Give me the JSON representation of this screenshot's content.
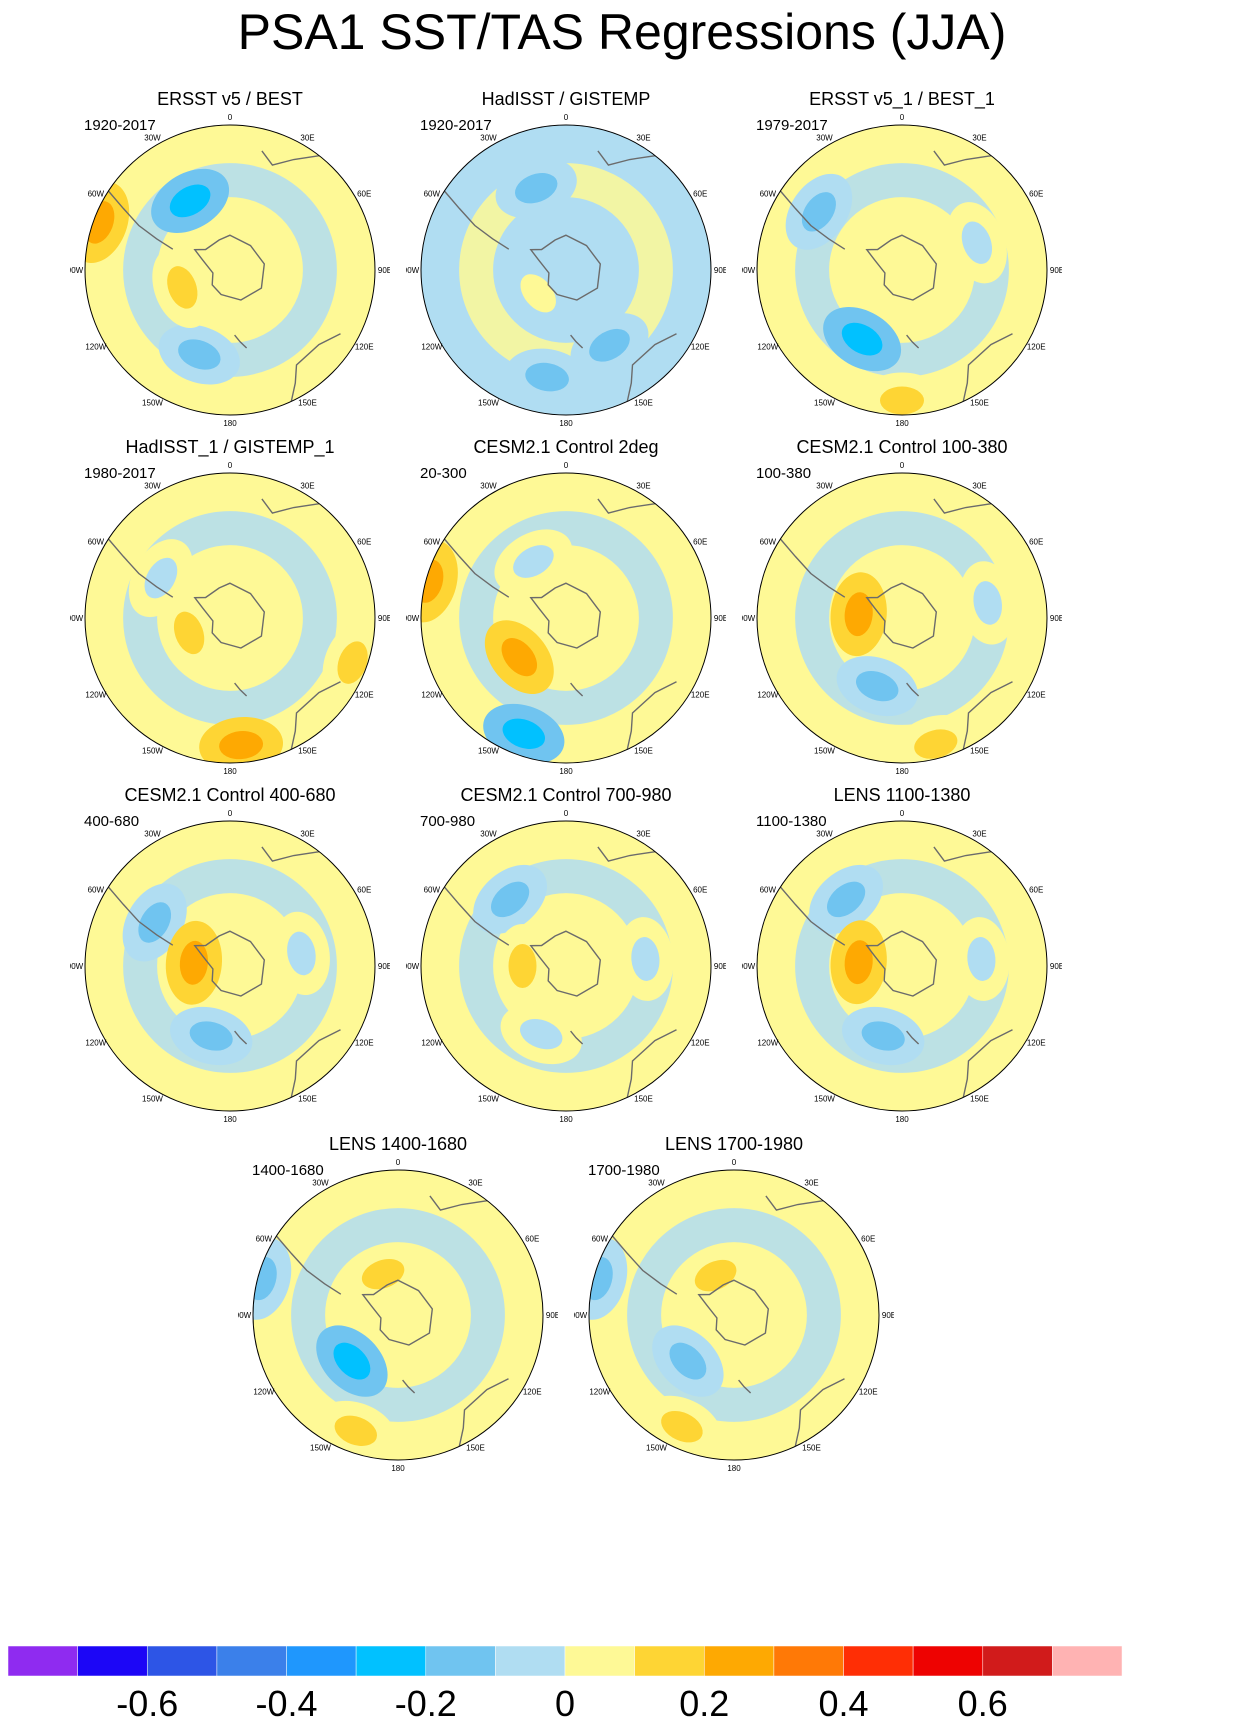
{
  "title": "PSA1 SST/TAS Regressions (JJA)",
  "chart_data": {
    "type": "heatmap",
    "projection": "polar-stereographic-south",
    "longitude_labels": [
      "0",
      "30E",
      "60E",
      "90E",
      "120E",
      "150E",
      "180",
      "150W",
      "120W",
      "90W",
      "60W",
      "30W"
    ],
    "panels": [
      {
        "title": "ERSST v5 / BEST",
        "years": "1920-2017",
        "dominant_sign": "mixed",
        "features": [
          {
            "lon": 330,
            "r": 0.55,
            "value": -0.25
          },
          {
            "lon": 200,
            "r": 0.62,
            "value": -0.15
          },
          {
            "lon": 250,
            "r": 0.35,
            "value": 0.15
          },
          {
            "lon": 290,
            "r": 0.96,
            "value": 0.25
          }
        ]
      },
      {
        "title": "HadISST / GISTEMP",
        "years": "1920-2017",
        "dominant_sign": "negative",
        "features": [
          {
            "lon": 340,
            "r": 0.6,
            "value": -0.15
          },
          {
            "lon": 190,
            "r": 0.75,
            "value": -0.15
          },
          {
            "lon": 230,
            "r": 0.25,
            "value": 0.05
          },
          {
            "lon": 150,
            "r": 0.6,
            "value": -0.2
          }
        ]
      },
      {
        "title": "ERSST v5_1 / BEST_1",
        "years": "1979-2017",
        "dominant_sign": "mixed",
        "features": [
          {
            "lon": 210,
            "r": 0.55,
            "value": -0.25
          },
          {
            "lon": 180,
            "r": 0.9,
            "value": 0.15
          },
          {
            "lon": 305,
            "r": 0.7,
            "value": -0.2
          },
          {
            "lon": 70,
            "r": 0.55,
            "value": -0.1
          }
        ]
      },
      {
        "title": "HadISST_1 / GISTEMP_1",
        "years": "1980-2017",
        "dominant_sign": "mixed",
        "features": [
          {
            "lon": 175,
            "r": 0.88,
            "value": 0.2
          },
          {
            "lon": 300,
            "r": 0.55,
            "value": -0.1
          },
          {
            "lon": 250,
            "r": 0.3,
            "value": 0.15
          },
          {
            "lon": 110,
            "r": 0.9,
            "value": 0.15
          }
        ]
      },
      {
        "title": "CESM2.1 Control 2deg",
        "years": "20-300",
        "dominant_sign": "mixed",
        "features": [
          {
            "lon": 230,
            "r": 0.42,
            "value": 0.2
          },
          {
            "lon": 200,
            "r": 0.85,
            "value": -0.25
          },
          {
            "lon": 285,
            "r": 0.98,
            "value": 0.25
          },
          {
            "lon": 330,
            "r": 0.45,
            "value": -0.1
          }
        ]
      },
      {
        "title": "CESM2.1 Control 100-380",
        "years": "100-380",
        "dominant_sign": "mixed",
        "features": [
          {
            "lon": 200,
            "r": 0.5,
            "value": -0.15
          },
          {
            "lon": 275,
            "r": 0.3,
            "value": 0.2
          },
          {
            "lon": 165,
            "r": 0.9,
            "value": 0.15
          },
          {
            "lon": 80,
            "r": 0.6,
            "value": -0.1
          }
        ]
      },
      {
        "title": "CESM2.1 Control 400-680",
        "years": "400-680",
        "dominant_sign": "mixed",
        "features": [
          {
            "lon": 195,
            "r": 0.5,
            "value": -0.15
          },
          {
            "lon": 300,
            "r": 0.6,
            "value": -0.2
          },
          {
            "lon": 275,
            "r": 0.25,
            "value": 0.2
          },
          {
            "lon": 80,
            "r": 0.5,
            "value": -0.1
          }
        ]
      },
      {
        "title": "CESM2.1 Control 700-980",
        "years": "700-980",
        "dominant_sign": "mixed",
        "features": [
          {
            "lon": 320,
            "r": 0.6,
            "value": -0.15
          },
          {
            "lon": 200,
            "r": 0.5,
            "value": -0.1
          },
          {
            "lon": 270,
            "r": 0.3,
            "value": 0.15
          },
          {
            "lon": 85,
            "r": 0.55,
            "value": -0.1
          }
        ]
      },
      {
        "title": "LENS 1100-1380",
        "years": "1100-1380",
        "dominant_sign": "mixed",
        "features": [
          {
            "lon": 320,
            "r": 0.6,
            "value": -0.15
          },
          {
            "lon": 195,
            "r": 0.5,
            "value": -0.15
          },
          {
            "lon": 275,
            "r": 0.3,
            "value": 0.2
          },
          {
            "lon": 85,
            "r": 0.55,
            "value": -0.1
          }
        ]
      },
      {
        "title": "LENS 1400-1680",
        "years": "1400-1680",
        "dominant_sign": "mixed",
        "features": [
          {
            "lon": 225,
            "r": 0.45,
            "value": -0.25
          },
          {
            "lon": 200,
            "r": 0.85,
            "value": 0.15
          },
          {
            "lon": 340,
            "r": 0.3,
            "value": 0.15
          },
          {
            "lon": 285,
            "r": 0.97,
            "value": -0.2
          }
        ]
      },
      {
        "title": "LENS 1700-1980",
        "years": "1700-1980",
        "dominant_sign": "mixed",
        "features": [
          {
            "lon": 225,
            "r": 0.45,
            "value": -0.2
          },
          {
            "lon": 205,
            "r": 0.85,
            "value": 0.15
          },
          {
            "lon": 335,
            "r": 0.3,
            "value": 0.15
          },
          {
            "lon": 285,
            "r": 0.97,
            "value": -0.2
          }
        ]
      }
    ],
    "colorbar": {
      "colors": [
        "#8f2bf0",
        "#1c06f6",
        "#2d55e6",
        "#3b80ea",
        "#1f97fd",
        "#01c1ff",
        "#70c4f0",
        "#b0ddf2",
        "#fef996",
        "#fed534",
        "#fea902",
        "#ff7906",
        "#ff2e05",
        "#ee0201",
        "#d11b1b",
        "#ffb3b3"
      ],
      "ticks": [
        "-0.6",
        "-0.4",
        "-0.2",
        "0",
        "0.2",
        "0.4",
        "0.6"
      ],
      "range": [
        -0.8,
        0.8
      ]
    }
  }
}
